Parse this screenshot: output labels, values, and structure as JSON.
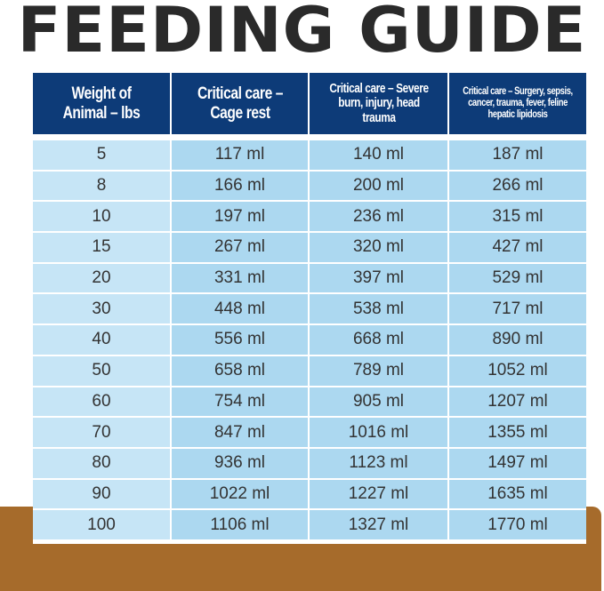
{
  "title": "FEEDING GUIDE",
  "colors": {
    "header": "#0d3b78",
    "first_column": "#c6e5f6",
    "cells": "#acd8f0",
    "ground": "#a66b2b"
  },
  "table": {
    "headers": [
      "Weight of Animal – lbs",
      "Critical care – Cage rest",
      "Critical care – Severe burn, injury, head trauma",
      "Critical care – Surgery, sepsis, cancer, trauma, fever, feline hepatic lipidosis"
    ],
    "rows": [
      [
        "5",
        "117 ml",
        "140 ml",
        "187 ml"
      ],
      [
        "8",
        "166 ml",
        "200 ml",
        "266 ml"
      ],
      [
        "10",
        "197 ml",
        "236 ml",
        "315 ml"
      ],
      [
        "15",
        "267 ml",
        "320 ml",
        "427 ml"
      ],
      [
        "20",
        "331 ml",
        "397 ml",
        "529 ml"
      ],
      [
        "30",
        "448 ml",
        "538 ml",
        "717 ml"
      ],
      [
        "40",
        "556 ml",
        "668 ml",
        "890 ml"
      ],
      [
        "50",
        "658 ml",
        "789 ml",
        "1052 ml"
      ],
      [
        "60",
        "754 ml",
        "905 ml",
        "1207 ml"
      ],
      [
        "70",
        "847 ml",
        "1016 ml",
        "1355 ml"
      ],
      [
        "80",
        "936 ml",
        "1123 ml",
        "1497 ml"
      ],
      [
        "90",
        "1022 ml",
        "1227 ml",
        "1635 ml"
      ],
      [
        "100",
        "1106 ml",
        "1327 ml",
        "1770 ml"
      ]
    ]
  }
}
